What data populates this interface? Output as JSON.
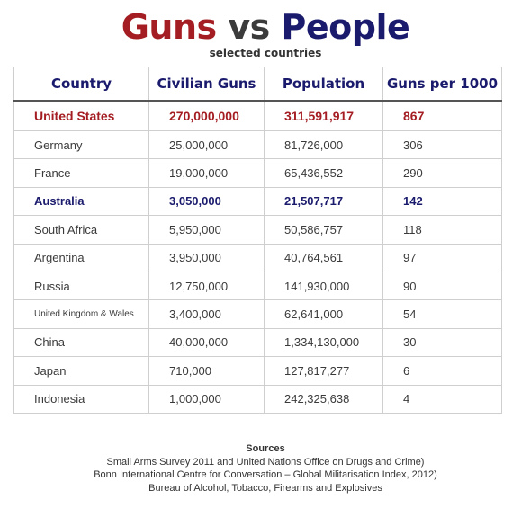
{
  "title": {
    "part1": "Guns",
    "part2": "vs",
    "part3": "People"
  },
  "subtitle": "selected countries",
  "chart_data": {
    "type": "table",
    "columns": [
      "Country",
      "Civilian Guns",
      "Population",
      "Guns per 1000"
    ],
    "rows": [
      {
        "country": "United States",
        "guns": "270,000,000",
        "population": "311,591,917",
        "per1000": "867",
        "highlight": "red"
      },
      {
        "country": "Germany",
        "guns": "25,000,000",
        "population": "81,726,000",
        "per1000": "306"
      },
      {
        "country": "France",
        "guns": "19,000,000",
        "population": "65,436,552",
        "per1000": "290"
      },
      {
        "country": "Australia",
        "guns": "3,050,000",
        "population": "21,507,717",
        "per1000": "142",
        "highlight": "blue"
      },
      {
        "country": "South Africa",
        "guns": "5,950,000",
        "population": "50,586,757",
        "per1000": "118"
      },
      {
        "country": "Argentina",
        "guns": "3,950,000",
        "population": "40,764,561",
        "per1000": "97"
      },
      {
        "country": "Russia",
        "guns": "12,750,000",
        "population": "141,930,000",
        "per1000": "90"
      },
      {
        "country": "United Kingdom & Wales",
        "guns": "3,400,000",
        "population": "62,641,000",
        "per1000": "54",
        "small": true
      },
      {
        "country": "China",
        "guns": "40,000,000",
        "population": "1,334,130,000",
        "per1000": "30"
      },
      {
        "country": "Japan",
        "guns": "710,000",
        "population": "127,817,277",
        "per1000": "6"
      },
      {
        "country": "Indonesia",
        "guns": "1,000,000",
        "population": "242,325,638",
        "per1000": "4"
      }
    ]
  },
  "sources": {
    "heading": "Sources",
    "lines": [
      "Small Arms Survey 2011 and United Nations Office on Drugs and Crime)",
      "Bonn International Centre for Conversation – Global Militarisation Index, 2012)",
      "Bureau of Alcohol, Tobacco, Firearms and Explosives"
    ]
  },
  "colors": {
    "red": "#a41d22",
    "blue": "#1b1b6e"
  }
}
